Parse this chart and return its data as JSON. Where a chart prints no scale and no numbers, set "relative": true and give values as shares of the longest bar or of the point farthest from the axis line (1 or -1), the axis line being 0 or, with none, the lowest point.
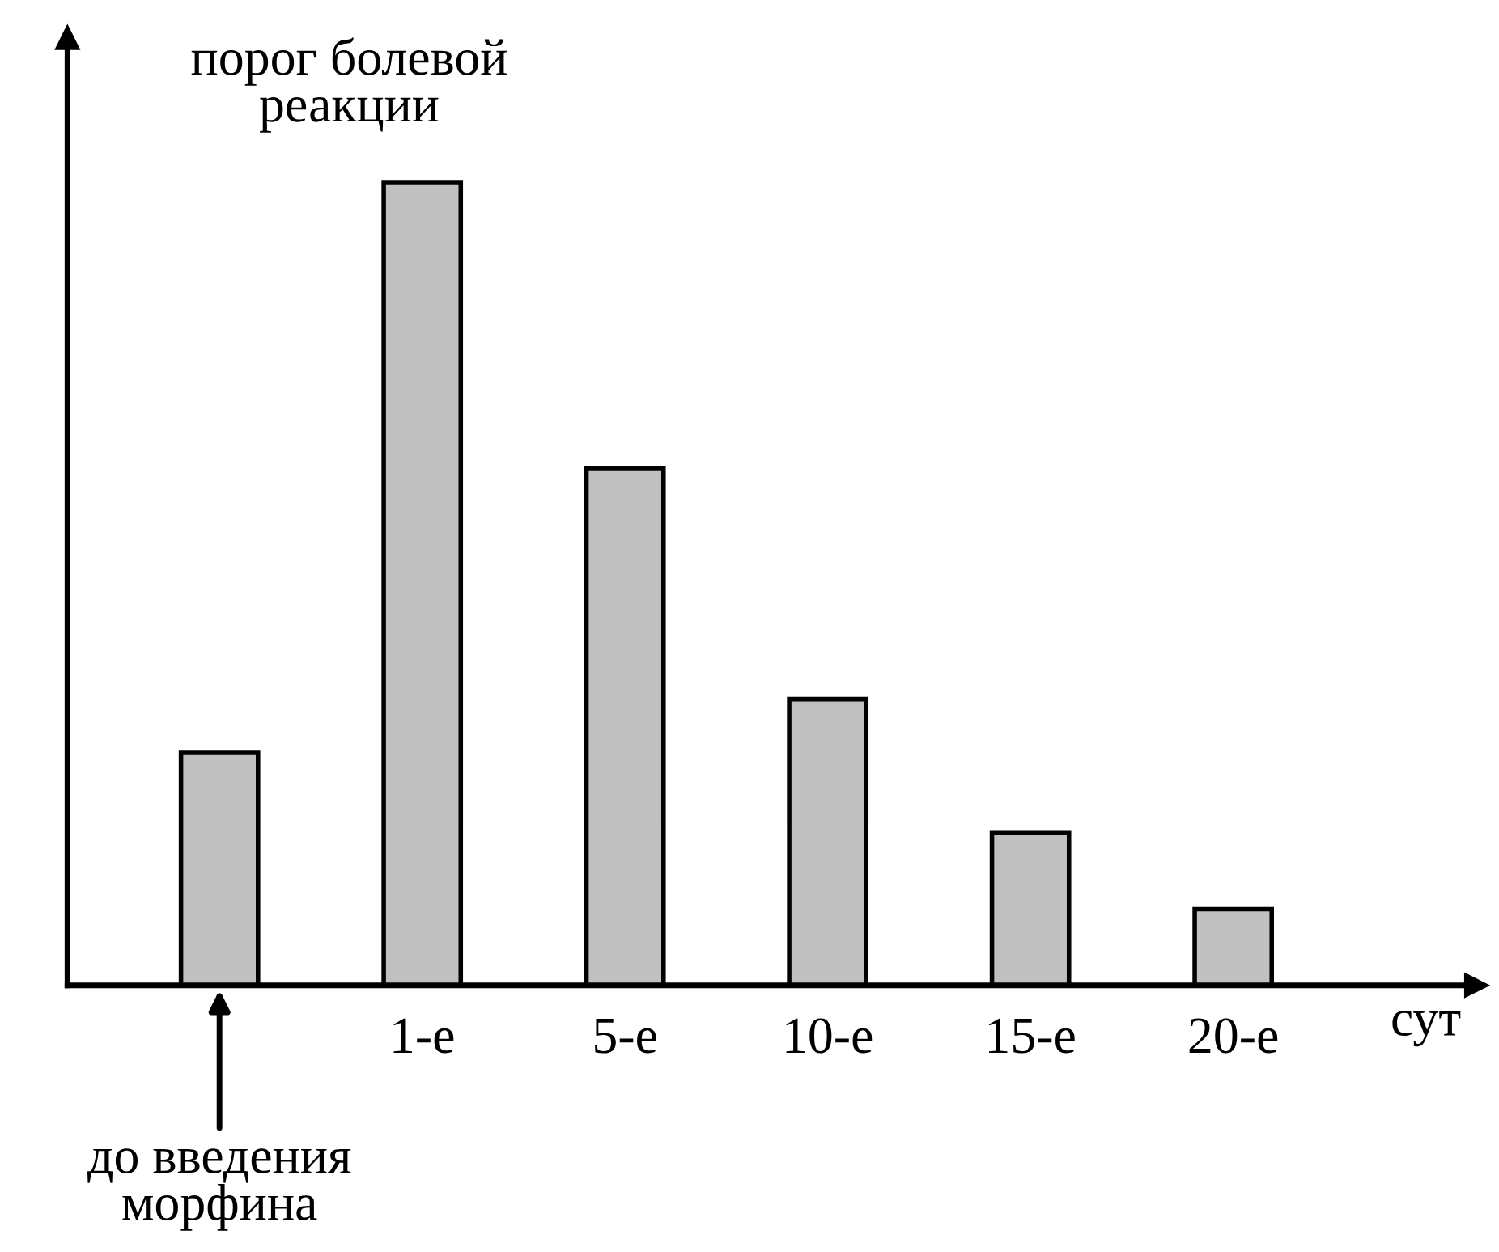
{
  "chart_data": {
    "type": "bar",
    "relative": true,
    "categories": [
      null,
      "1-е",
      "5-е",
      "10-е",
      "15-е",
      "20-е"
    ],
    "values": [
      0.29,
      1,
      0.644,
      0.356,
      0.19,
      0.095
    ],
    "color": "#c0c0c0",
    "xlabel": "сут",
    "ylabel": "порог болевой реакции",
    "annotations": [
      "до введения морфина"
    ],
    "grid": false
  }
}
